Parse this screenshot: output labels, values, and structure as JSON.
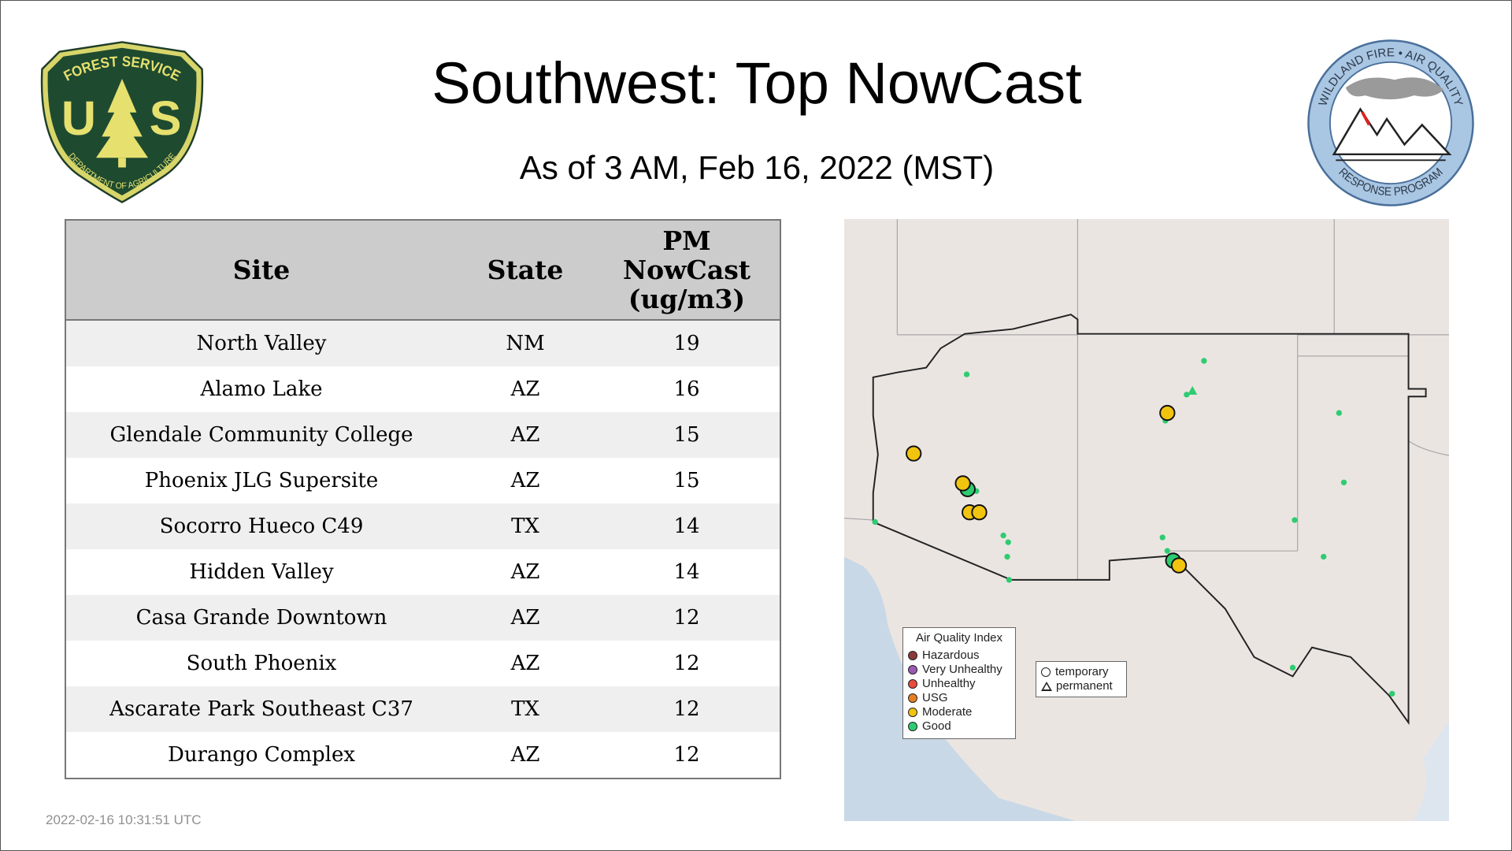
{
  "header": {
    "title": "Southwest: Top NowCast",
    "subtitle": "As of  3 AM, Feb 16, 2022 (MST)"
  },
  "logos": {
    "left": {
      "name": "US Forest Service shield",
      "text_top": "FOREST SERVICE",
      "letters": "U S",
      "text_bottom": "DEPARTMENT OF AGRICULTURE"
    },
    "right": {
      "name": "Wildland Fire Air Quality Response Program",
      "text_top": "WILDLAND FIRE • AIR QUALITY",
      "text_bottom": "RESPONSE PROGRAM"
    }
  },
  "table": {
    "columns": [
      "Site",
      "State",
      "PM NowCast (ug/m3)"
    ],
    "pm_header_lines": [
      "PM",
      "NowCast",
      "(ug/m3)"
    ],
    "rows": [
      {
        "site": "North Valley",
        "state": "NM",
        "value": "19"
      },
      {
        "site": "Alamo Lake",
        "state": "AZ",
        "value": "16"
      },
      {
        "site": "Glendale Community College",
        "state": "AZ",
        "value": "15"
      },
      {
        "site": "Phoenix JLG Supersite",
        "state": "AZ",
        "value": "15"
      },
      {
        "site": "Socorro Hueco C49",
        "state": "TX",
        "value": "14"
      },
      {
        "site": "Hidden Valley",
        "state": "AZ",
        "value": "14"
      },
      {
        "site": "Casa Grande Downtown",
        "state": "AZ",
        "value": "12"
      },
      {
        "site": "South Phoenix",
        "state": "AZ",
        "value": "12"
      },
      {
        "site": "Ascarate Park Southeast C37",
        "state": "TX",
        "value": "12"
      },
      {
        "site": "Durango Complex",
        "state": "AZ",
        "value": "12"
      }
    ]
  },
  "map": {
    "legend_aqi": {
      "title": "Air Quality Index",
      "items": [
        {
          "label": "Hazardous",
          "color": "#8b3a3a"
        },
        {
          "label": "Very Unhealthy",
          "color": "#9b59b6"
        },
        {
          "label": "Unhealthy",
          "color": "#e74c3c"
        },
        {
          "label": "USG",
          "color": "#e67e22"
        },
        {
          "label": "Moderate",
          "color": "#f1c40f"
        },
        {
          "label": "Good",
          "color": "#2ecc71"
        }
      ]
    },
    "legend_type": {
      "temporary": "temporary",
      "permanent": "permanent"
    }
  },
  "footer": {
    "timestamp": "2022-02-16 10:31:51 UTC"
  }
}
